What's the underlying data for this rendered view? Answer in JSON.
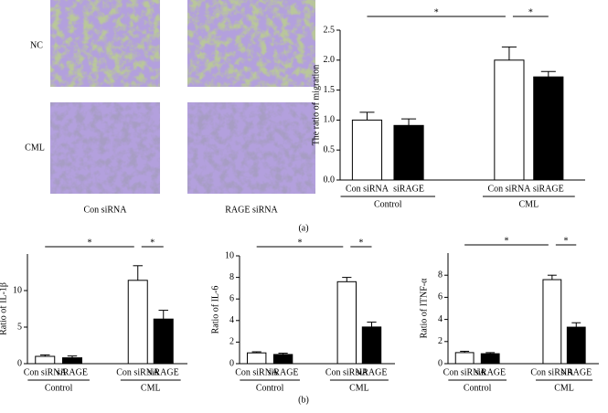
{
  "panel_a": {
    "rows": [
      "NC",
      "CML"
    ],
    "columns": [
      "Con siRNA",
      "RAGE siRNA"
    ],
    "label": "(a)"
  },
  "panel_b": {
    "label": "(b)"
  },
  "chart_data": [
    {
      "type": "bar",
      "ylabel": "The ratio of migration",
      "categories": [
        "Con siRNA",
        "siRAGE",
        "Con siRNA",
        "siRAGE"
      ],
      "groups": [
        "Control",
        "CML"
      ],
      "values": [
        1.0,
        0.91,
        2.0,
        1.72
      ],
      "errors": [
        0.13,
        0.11,
        0.22,
        0.09
      ],
      "colors": [
        "#ffffff",
        "#000000",
        "#ffffff",
        "#000000"
      ],
      "ylim": [
        0,
        2.5
      ],
      "yticks": [
        {
          "value": 0,
          "label": "0.0"
        },
        0.5,
        {
          "value": 1,
          "label": "1.0"
        },
        1.5,
        {
          "value": 2,
          "label": "2.0"
        },
        2.5
      ],
      "significance": [
        {
          "from": 0,
          "to": 2,
          "label": "*"
        },
        {
          "from": 2,
          "to": 3,
          "label": "*"
        }
      ]
    },
    {
      "type": "bar",
      "ylabel": "Ratio of IL-1β",
      "categories": [
        "Con siRNA",
        "siRAGE",
        "Con siRNA",
        "siRAGE"
      ],
      "groups": [
        "Control",
        "CML"
      ],
      "values": [
        1.0,
        0.8,
        11.4,
        6.1
      ],
      "errors": [
        0.2,
        0.25,
        2.0,
        1.2
      ],
      "colors": [
        "#ffffff",
        "#000000",
        "#ffffff",
        "#000000"
      ],
      "ylim": [
        0,
        15
      ],
      "yticks": [
        0,
        5,
        10
      ],
      "significance": [
        {
          "from": 0,
          "to": 2,
          "label": "*"
        },
        {
          "from": 2,
          "to": 3,
          "label": "*"
        }
      ]
    },
    {
      "type": "bar",
      "ylabel": "Ratio of IL-6",
      "categories": [
        "Con siRNA",
        "siRAGE",
        "Con siRNA",
        "siRAGE"
      ],
      "groups": [
        "Control",
        "CML"
      ],
      "values": [
        1.0,
        0.85,
        7.6,
        3.4
      ],
      "errors": [
        0.1,
        0.12,
        0.4,
        0.45
      ],
      "colors": [
        "#ffffff",
        "#000000",
        "#ffffff",
        "#000000"
      ],
      "ylim": [
        0,
        10
      ],
      "yticks": [
        0,
        2,
        4,
        6,
        8,
        10
      ],
      "significance": [
        {
          "from": 0,
          "to": 2,
          "label": "*"
        },
        {
          "from": 2,
          "to": 3,
          "label": "*"
        }
      ]
    },
    {
      "type": "bar",
      "ylabel": "Ratio of ITNF-α",
      "categories": [
        "Con siRNA",
        "siRAGE",
        "Con siRNA",
        "siRAGE"
      ],
      "groups": [
        "Control",
        "CML"
      ],
      "values": [
        1.0,
        0.9,
        7.6,
        3.3
      ],
      "errors": [
        0.12,
        0.1,
        0.4,
        0.4
      ],
      "colors": [
        "#ffffff",
        "#000000",
        "#ffffff",
        "#000000"
      ],
      "ylim": [
        0,
        10
      ],
      "yticks": [
        0,
        2,
        4,
        6,
        8
      ],
      "significance": [
        {
          "from": 0,
          "to": 2,
          "label": "*"
        },
        {
          "from": 2,
          "to": 3,
          "label": "*"
        }
      ]
    }
  ]
}
